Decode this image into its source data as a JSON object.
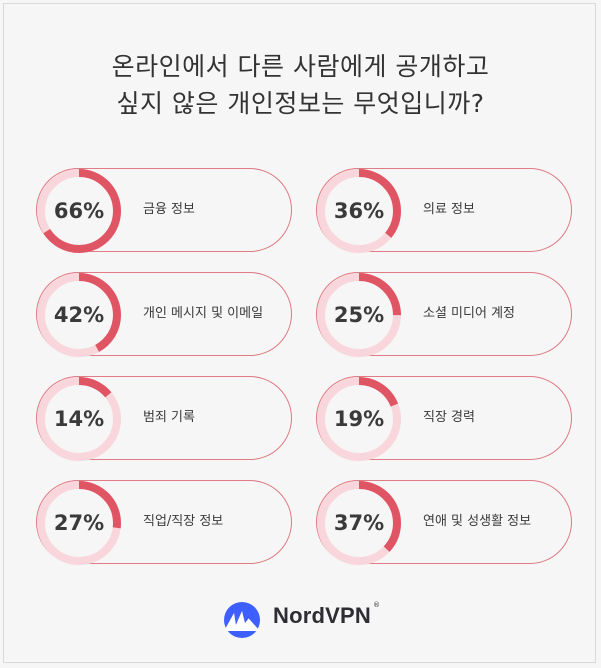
{
  "title_line1": "온라인에서 다른 사람에게 공개하고",
  "title_line2": "싶지 않은 개인정보는 무엇입니까?",
  "colors": {
    "ring_track": "#f8d6db",
    "ring_fill": "#e05564",
    "card_border": "#e07a85",
    "logo_blue": "#3e5fff"
  },
  "chart_data": {
    "type": "pie",
    "title": "온라인에서 다른 사람에게 공개하고 싶지 않은 개인정보는 무엇입니까?",
    "categories": [
      "금융 정보",
      "의료 정보",
      "개인 메시지 및 이메일",
      "소셜 미디어 계정",
      "범죄 기록",
      "직장 경력",
      "직업/직장 정보",
      "연애 및 성생활 정보"
    ],
    "values": [
      66,
      36,
      42,
      25,
      14,
      19,
      27,
      37
    ],
    "labels": [
      "66%",
      "36%",
      "42%",
      "25%",
      "14%",
      "19%",
      "27%",
      "37%"
    ],
    "unit": "%"
  },
  "brand": {
    "name": "NordVPN",
    "reg": "®"
  }
}
